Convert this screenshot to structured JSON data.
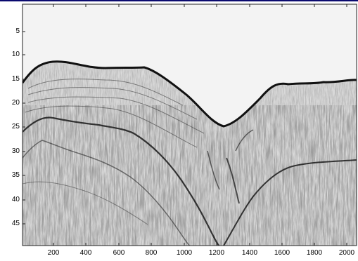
{
  "figure": {
    "y_ticks": [
      "5",
      "10",
      "15",
      "20",
      "25",
      "30",
      "35",
      "40",
      "45"
    ],
    "x_ticks": [
      "200",
      "400",
      "600",
      "800",
      "1000",
      "1200",
      "1400",
      "1600",
      "1800",
      "2000"
    ],
    "colors": {
      "background": "#0a0a6e",
      "plot_background": "#f4f4f4",
      "reflector": "#111111",
      "noise": "#8a8a8a"
    }
  }
}
